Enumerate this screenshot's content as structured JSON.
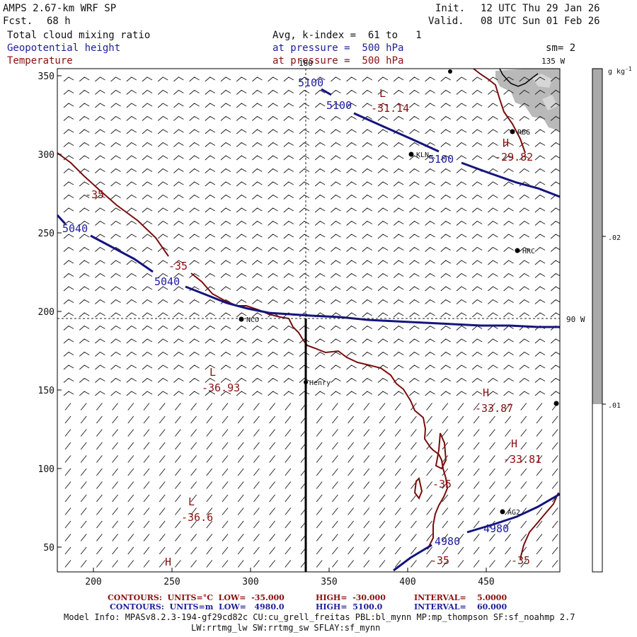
{
  "header": {
    "model_title": "AMPS 2.67-km WRF SP",
    "fcst_label": "Fcst.",
    "fcst_value": "68 h",
    "init_label": "Init.",
    "init_value": "12 UTC Thu 29 Jan 26",
    "valid_label": "Valid.",
    "valid_value": "08 UTC Sun 01 Feb 26",
    "field_1": "Total cloud mixing ratio",
    "field_2": "Geopotential height",
    "field_3": "Temperature",
    "avg_line": "Avg, k-index =  61 to   1",
    "pressure_line_2": "at pressure =  500 hPa",
    "pressure_line_3": "at pressure =  500 hPa",
    "sm": "sm= 2"
  },
  "map": {
    "meridian_top": "180",
    "meridian_right_top": "135 W",
    "meridian_right": "90 W",
    "y_ticks": [
      "350",
      "300",
      "250",
      "200",
      "150",
      "100",
      "50"
    ],
    "x_ticks": [
      "200",
      "250",
      "300",
      "350",
      "400",
      "450"
    ],
    "stations": [
      {
        "name": "RBG"
      },
      {
        "name": "KLN"
      },
      {
        "name": "HRC"
      },
      {
        "name": "NCO"
      },
      {
        "name": "Henry"
      },
      {
        "name": "AG2"
      }
    ],
    "height_labels": [
      "5100",
      "5100",
      "5100",
      "5040",
      "5040",
      "4980",
      "4980"
    ],
    "temp_labels": [
      "-35",
      "-35",
      "-35",
      "-35",
      "-35"
    ],
    "lows": [
      {
        "letter": "L",
        "value": "-31.14"
      },
      {
        "letter": "L",
        "value": "-36.93"
      },
      {
        "letter": "L",
        "value": "-36.6"
      }
    ],
    "highs": [
      {
        "letter": "H",
        "value": "-29.82"
      },
      {
        "letter": "H",
        "value": "-33.87"
      },
      {
        "letter": "H",
        "value": "-33.81"
      },
      {
        "letter": "H",
        "value": ""
      }
    ]
  },
  "colorbar": {
    "units": "g kg",
    "units_sup": "-1",
    "labels": [
      ".02",
      ".01"
    ],
    "colors": {
      "shade": "#a9a9a9",
      "empty": "#ffffff"
    }
  },
  "footer": {
    "temp_contours": "CONTOURS:  UNITS=°C  LOW=  -35.000",
    "temp_high": "HIGH=  -30.000",
    "temp_interval": "INTERVAL=    5.0000",
    "hgt_contours": "CONTOURS:  UNITS=m  LOW=   4980.0",
    "hgt_high": "HIGH=  5100.0",
    "hgt_interval": "INTERVAL=    60.000",
    "model_info_1": "Model Info: MPASv8.2.3-194-gf29cd82c CU:cu_grell_freitas PBL:bl_mynn MP:mp_thompson SF:sf_noahmp 2.7",
    "model_info_2": "LW:rrtmg_lw SW:rrtmg_sw SFLAY:sf_mynn"
  },
  "colors": {
    "height_contour": "#14147f",
    "temp_contour": "#7a0c0c",
    "cloud_shade": "#b4b4b4",
    "barb": "#222222"
  }
}
